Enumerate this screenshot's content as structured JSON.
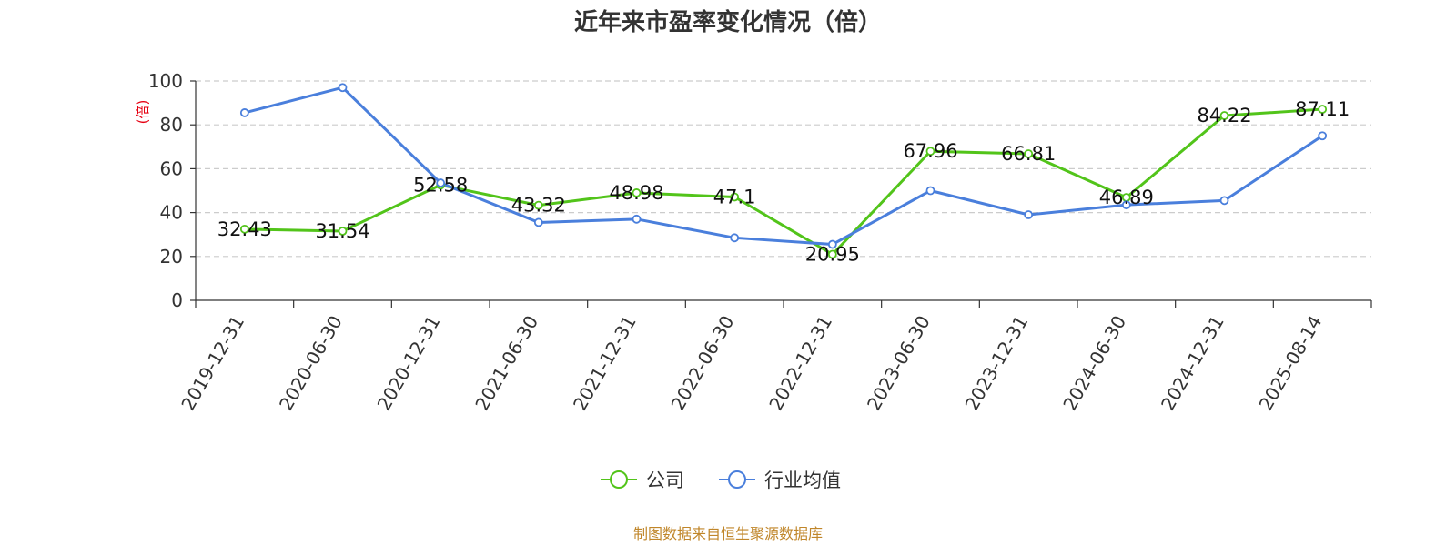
{
  "chart_data": {
    "type": "line",
    "title": "近年来市盈率变化情况（倍）",
    "ylabel": "(倍)",
    "xlabel": "",
    "ylim": [
      0,
      100
    ],
    "yticks": [
      0,
      20,
      40,
      60,
      80,
      100
    ],
    "categories": [
      "2019-12-31",
      "2020-06-30",
      "2020-12-31",
      "2021-06-30",
      "2021-12-31",
      "2022-06-30",
      "2022-12-31",
      "2023-06-30",
      "2023-12-31",
      "2024-06-30",
      "2024-12-31",
      "2025-08-14"
    ],
    "grid": true,
    "legend_position": "bottom",
    "series": [
      {
        "name": "公司",
        "color": "#52c41a",
        "values": [
          32.43,
          31.54,
          52.58,
          43.32,
          48.98,
          47.1,
          20.95,
          67.96,
          66.81,
          46.89,
          84.22,
          87.11
        ],
        "labels": [
          "32.43",
          "31.54",
          "52.58",
          "43.32",
          "48.98",
          "47.1",
          "20.95",
          "67.96",
          "66.81",
          "46.89",
          "84.22",
          "87.11"
        ]
      },
      {
        "name": "行业均值",
        "color": "#4a7fdc",
        "values": [
          85.5,
          97,
          53.5,
          35.5,
          37,
          28.5,
          25.5,
          50,
          39,
          43.5,
          45.5,
          75
        ]
      }
    ],
    "source": "制图数据来自恒生聚源数据库"
  }
}
